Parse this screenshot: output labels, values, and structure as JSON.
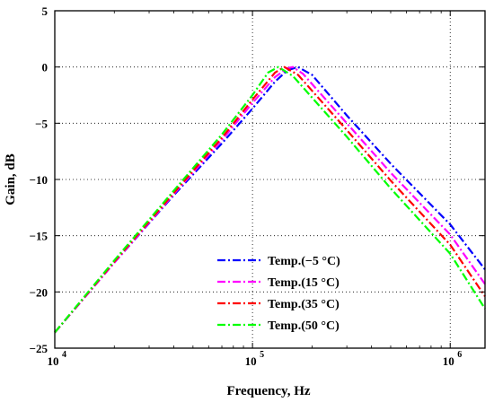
{
  "chart_data": {
    "type": "line",
    "xlabel": "Frequency, Hz",
    "ylabel": "Gain, dB",
    "x_scale": "log",
    "xlim": [
      10000,
      1500000
    ],
    "ylim": [
      -25,
      5
    ],
    "x_ticks": [
      {
        "value": 10000,
        "base": "10",
        "exp": "4"
      },
      {
        "value": 100000,
        "base": "10",
        "exp": "5"
      },
      {
        "value": 1000000,
        "base": "10",
        "exp": "6"
      }
    ],
    "y_ticks": [
      {
        "value": 5,
        "label": "5"
      },
      {
        "value": 0,
        "label": "0"
      },
      {
        "value": -5,
        "label": "−5"
      },
      {
        "value": -10,
        "label": "−10"
      },
      {
        "value": -15,
        "label": "−15"
      },
      {
        "value": -20,
        "label": "−20"
      },
      {
        "value": -25,
        "label": "−25"
      }
    ],
    "grid": true,
    "legend_position": "bottom-center",
    "series": [
      {
        "name": "Temp.(−5 °C)",
        "color": "#0000ff",
        "x": [
          10000,
          20000,
          40000,
          70000,
          100000,
          130000,
          150000,
          170000,
          200000,
          300000,
          500000,
          1000000,
          1500000
        ],
        "y": [
          -23.6,
          -17.4,
          -11.4,
          -6.8,
          -3.7,
          -1.3,
          -0.3,
          0.0,
          -0.7,
          -4.3,
          -8.6,
          -14.0,
          -18.0
        ]
      },
      {
        "name": "Temp.(15 °C)",
        "color": "#ff00ff",
        "x": [
          10000,
          20000,
          40000,
          70000,
          100000,
          130000,
          150000,
          160000,
          180000,
          300000,
          500000,
          1000000,
          1500000
        ],
        "y": [
          -23.6,
          -17.4,
          -11.3,
          -6.5,
          -3.2,
          -0.9,
          -0.1,
          0.0,
          -0.6,
          -5.0,
          -9.4,
          -14.9,
          -19.3
        ]
      },
      {
        "name": "Temp.(35 °C)",
        "color": "#ff0000",
        "x": [
          10000,
          20000,
          40000,
          70000,
          100000,
          130000,
          145000,
          170000,
          300000,
          500000,
          1000000,
          1500000
        ],
        "y": [
          -23.6,
          -17.3,
          -11.2,
          -6.3,
          -2.9,
          -0.5,
          0.0,
          -0.7,
          -5.6,
          -10.1,
          -15.8,
          -20.4
        ]
      },
      {
        "name": "Temp.(50 °C)",
        "color": "#00ff00",
        "x": [
          10000,
          20000,
          40000,
          70000,
          100000,
          120000,
          135000,
          160000,
          300000,
          500000,
          1000000,
          1500000
        ],
        "y": [
          -23.6,
          -17.2,
          -11.0,
          -6.0,
          -2.5,
          -0.5,
          0.0,
          -0.8,
          -6.2,
          -10.8,
          -16.6,
          -21.5
        ]
      }
    ]
  }
}
